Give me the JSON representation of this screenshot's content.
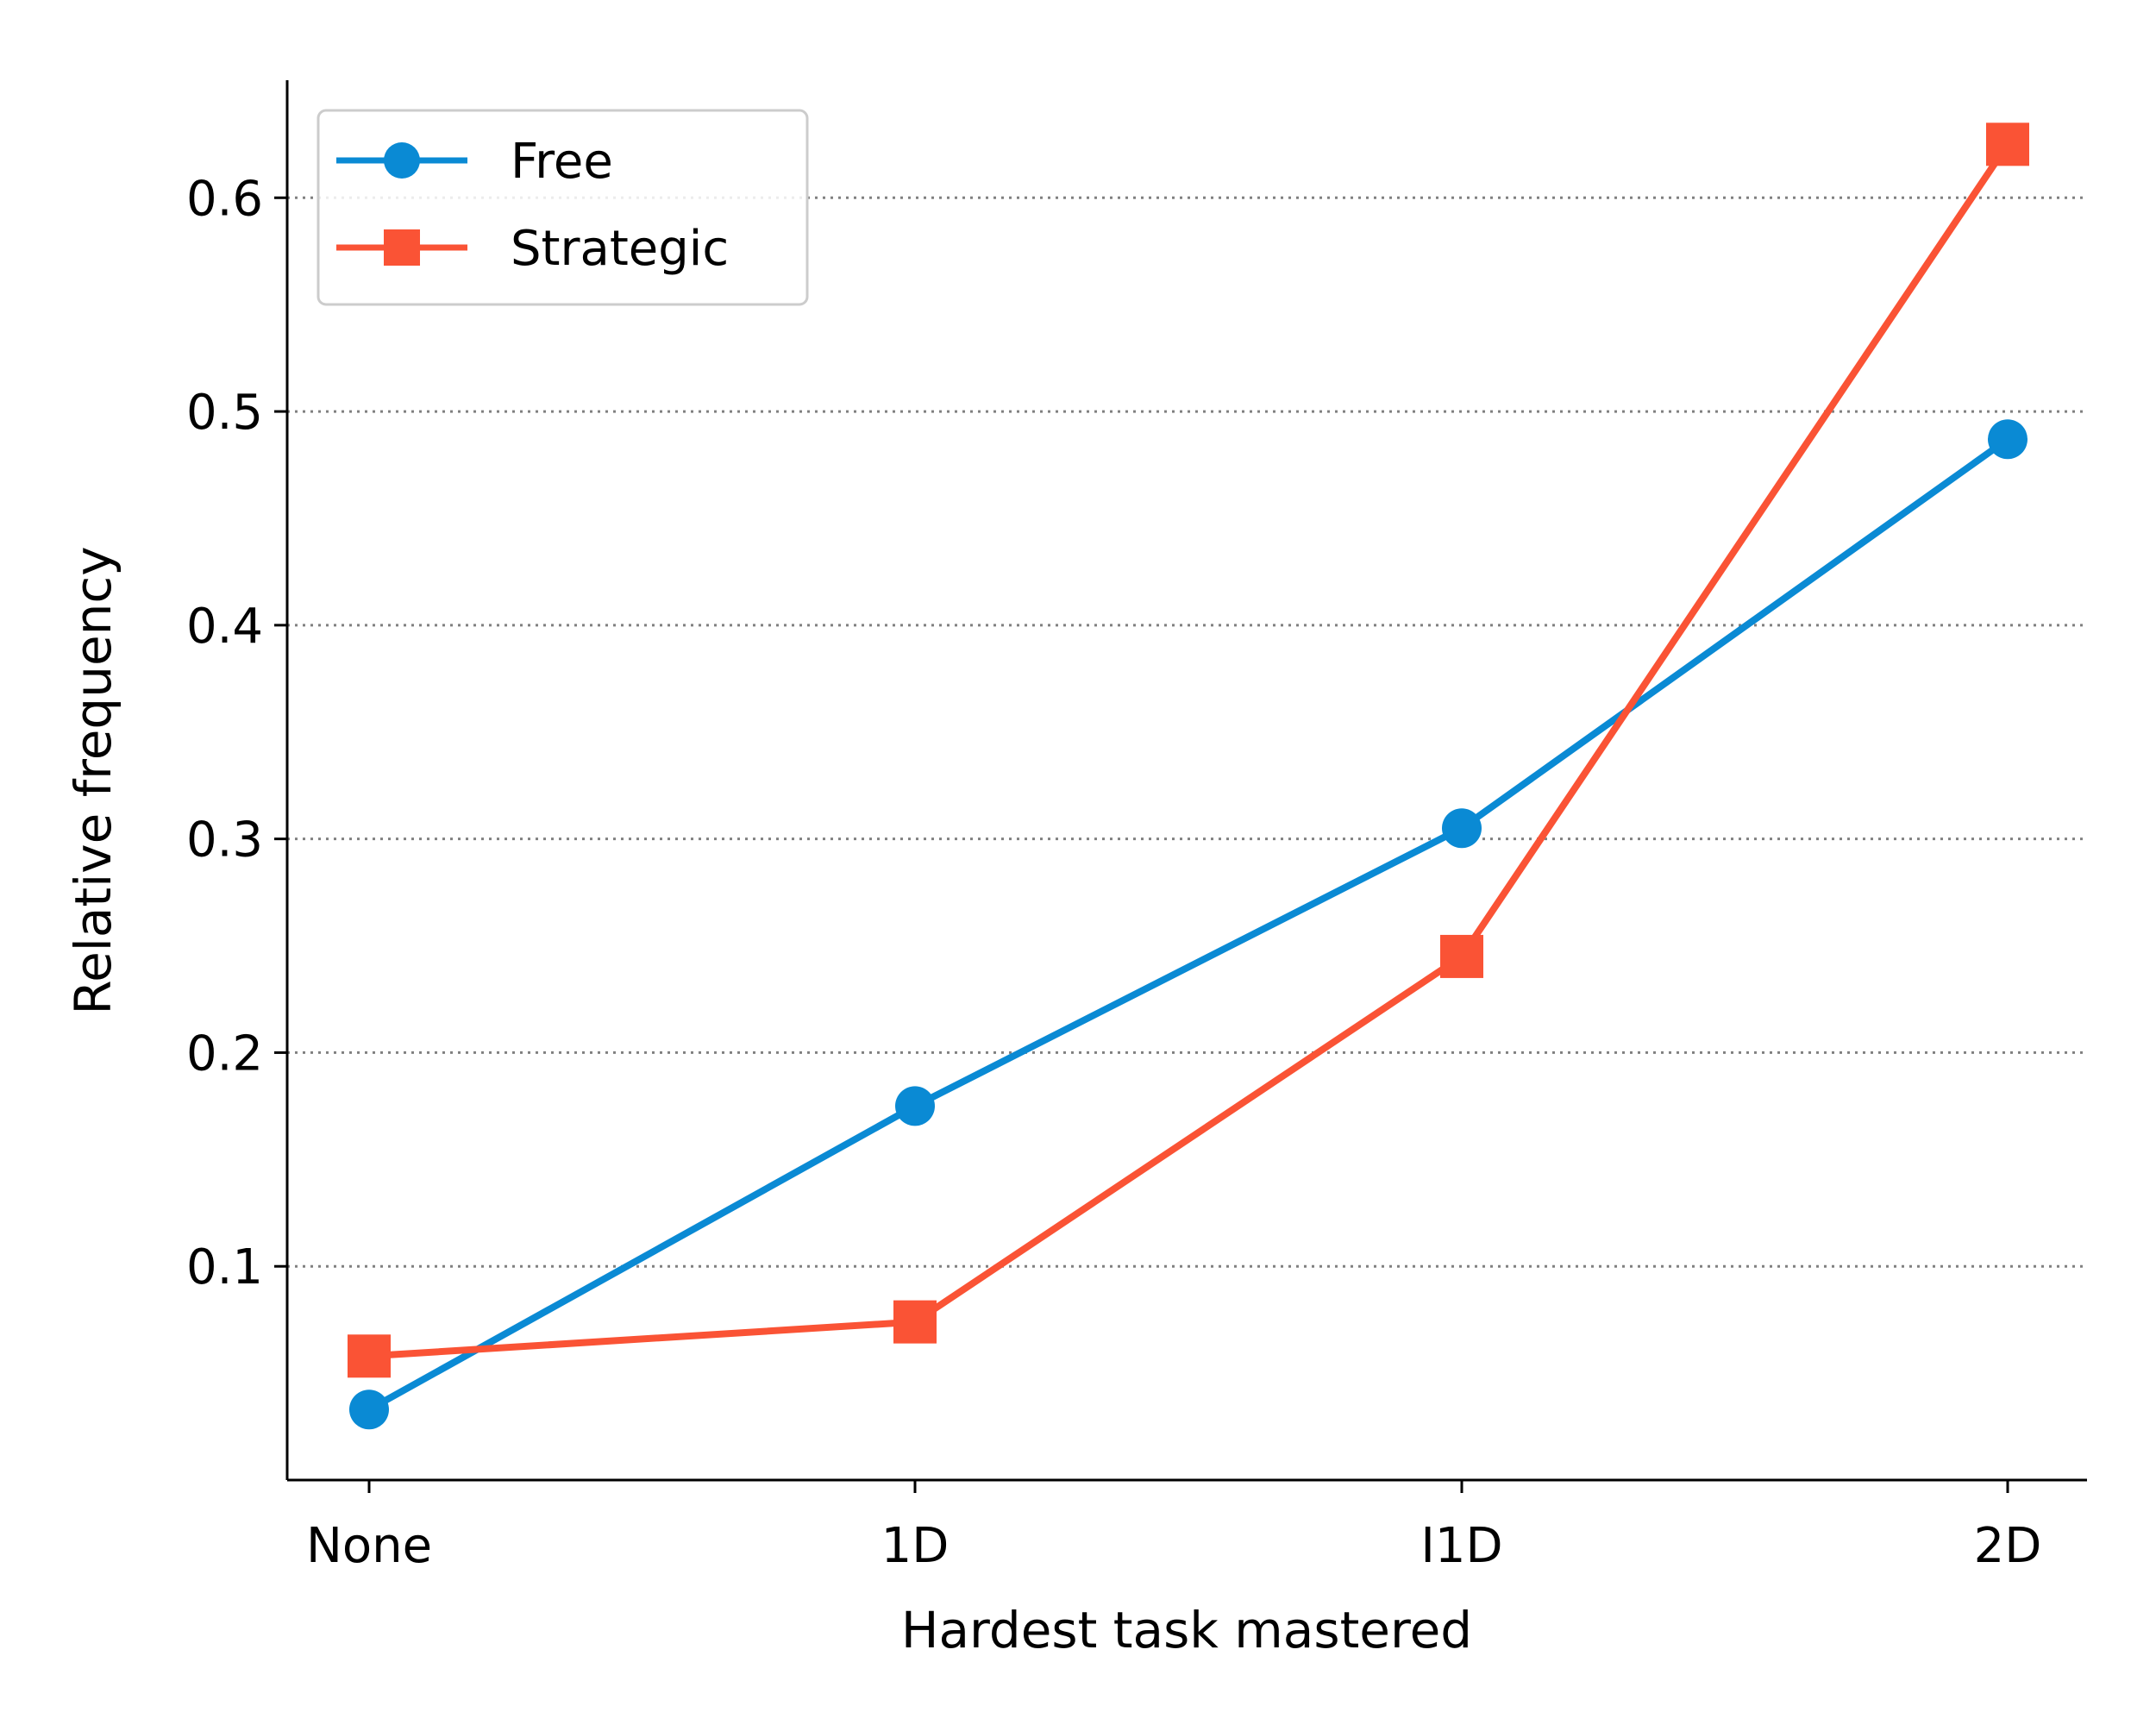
{
  "chart_data": {
    "type": "line",
    "title": "",
    "xlabel": "Hardest task mastered",
    "ylabel": "Relative frequency",
    "categories": [
      "None",
      "1D",
      "I1D",
      "2D"
    ],
    "ylim": [
      0.0,
      0.655
    ],
    "yticks": [
      0.1,
      0.2,
      0.3,
      0.4,
      0.5,
      0.6
    ],
    "ytick_labels": [
      "0.1",
      "0.2",
      "0.3",
      "0.4",
      "0.5",
      "0.6"
    ],
    "grid": "horizontal dotted",
    "legend_position": "top-left",
    "series": [
      {
        "name": "Free",
        "color": "#0a8ad4",
        "marker": "circle",
        "values": [
          0.033,
          0.175,
          0.305,
          0.487
        ]
      },
      {
        "name": "Strategic",
        "color": "#fa5335",
        "marker": "square",
        "values": [
          0.058,
          0.074,
          0.245,
          0.625
        ]
      }
    ]
  }
}
